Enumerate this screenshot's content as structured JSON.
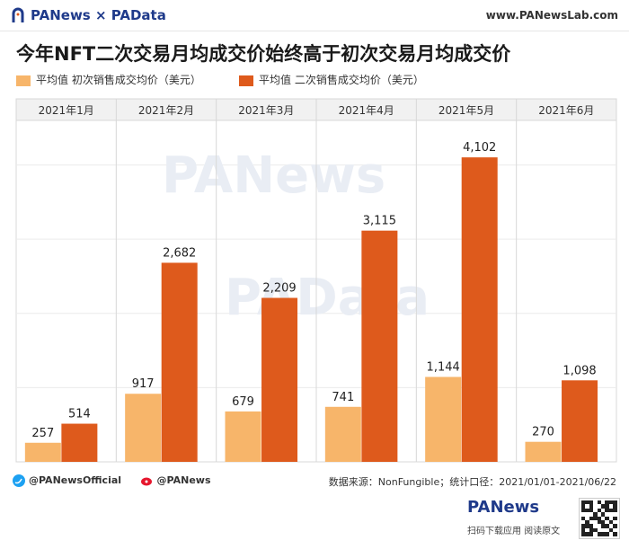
{
  "header": {
    "brand": "PANews × PAData",
    "site": "www.PANewsLab.com"
  },
  "title": "今年NFT二次交易月均成交价始终高于初次交易月均成交价",
  "legend": [
    {
      "label": "平均值 初次销售成交均价（美元）",
      "color": "#F7B56A"
    },
    {
      "label": "平均值 二次销售成交均价（美元）",
      "color": "#DE5A1C"
    }
  ],
  "chart_data": {
    "type": "bar",
    "categories": [
      "2021年1月",
      "2021年2月",
      "2021年3月",
      "2021年4月",
      "2021年5月",
      "2021年6月"
    ],
    "series": [
      {
        "name": "平均值 初次销售成交均价（美元）",
        "values": [
          257,
          917,
          679,
          741,
          1144,
          270
        ],
        "color": "#F7B56A"
      },
      {
        "name": "平均值 二次销售成交均价（美元）",
        "values": [
          514,
          2682,
          2209,
          3115,
          4102,
          1098
        ],
        "color": "#DE5A1C"
      }
    ],
    "data_labels": [
      [
        "257",
        "917",
        "679",
        "741",
        "1,144",
        "270"
      ],
      [
        "514",
        "2,682",
        "2,209",
        "3,115",
        "4,102",
        "1,098"
      ]
    ],
    "ylim": [
      0,
      4600
    ],
    "grid": true,
    "legend_position": "top-left",
    "watermarks": [
      "PANews",
      "PAData"
    ]
  },
  "footer": {
    "twitter": "@PANewsOfficial",
    "weibo": "@PANews",
    "source": "数据来源：NonFungible；统计口径：2021/01/01-2021/06/22"
  },
  "bottom_brand": {
    "logo": "PANews",
    "sub": "扫码下载应用 阅读原文"
  },
  "colors": {
    "primary_bar": "#F7B56A",
    "secondary_bar": "#DE5A1C",
    "brand": "#1F3A8A"
  }
}
